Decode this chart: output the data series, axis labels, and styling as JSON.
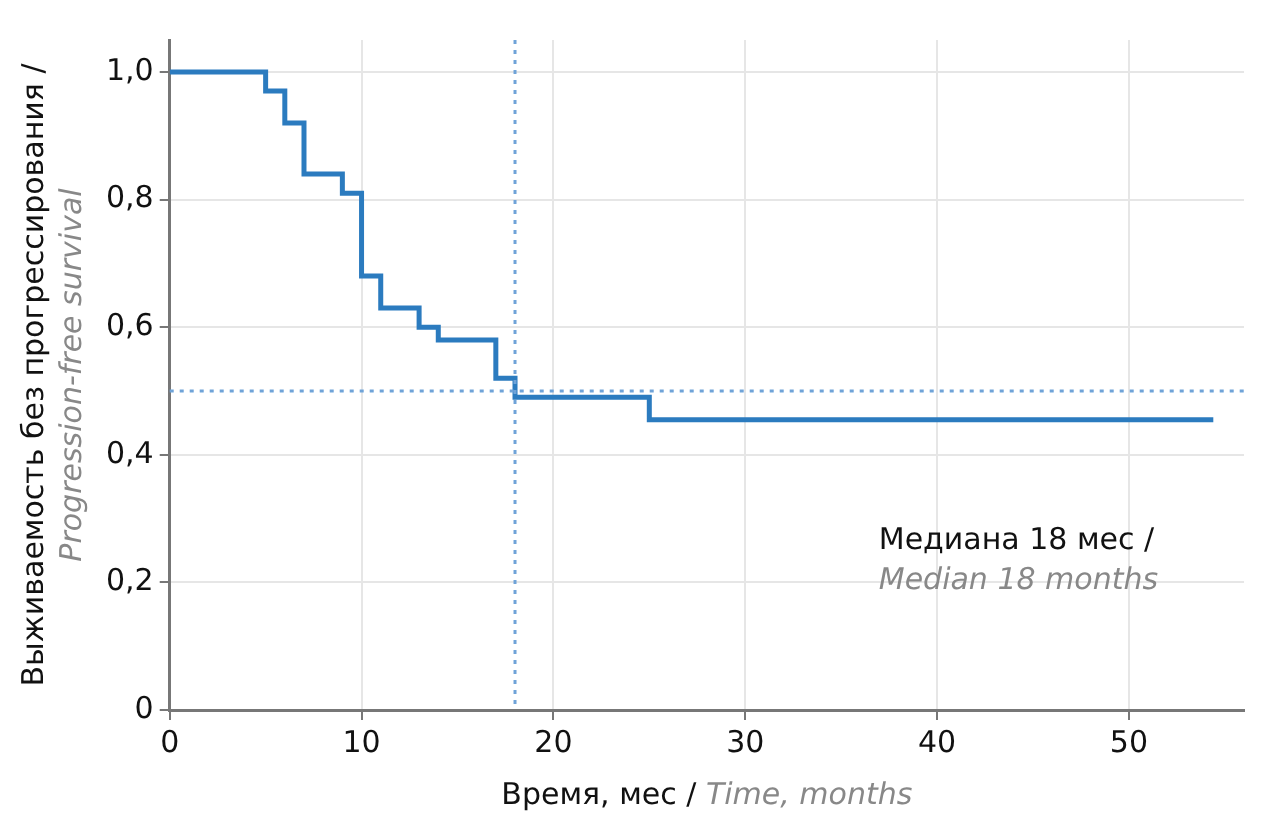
{
  "chart_data": {
    "type": "step",
    "xlabel": "Время, мес / Time, months",
    "ylabel": "Выживаемость без прогрессирования / Progression-free survival",
    "x": [
      0,
      5,
      6,
      7,
      9,
      10,
      11,
      13,
      14,
      17,
      18,
      25,
      54.4
    ],
    "series": [
      {
        "color": "#2b7bbf",
        "values": [
          1,
          0.97,
          0.92,
          0.84,
          0.81,
          0.68,
          0.63,
          0.6,
          0.58,
          0.52,
          0.49,
          0.455,
          0.455
        ]
      }
    ],
    "xlim": [
      0,
      56
    ],
    "xticks": [
      0,
      10,
      20,
      30,
      40,
      50
    ],
    "ylim": [
      0,
      1.05
    ],
    "yticks": [
      0,
      {
        "value": 0.2,
        "label": "0,2"
      },
      {
        "value": 0.4,
        "label": "0,4"
      },
      {
        "value": 0.6,
        "label": "0,6"
      },
      {
        "value": 0.8,
        "label": "0,8"
      },
      {
        "value": 1,
        "label": "1,0"
      }
    ],
    "ref_lines": [
      {
        "axis": "x",
        "value": 18,
        "color": "#6fa3d8",
        "line_style": "dotted"
      },
      {
        "axis": "y",
        "value": 0.5,
        "color": "#6fa3d8",
        "line_style": "dotted"
      }
    ],
    "annotations": [
      "Медиана 18 мес / Median 18 months"
    ],
    "grid": true,
    "legend": false,
    "marker": "none",
    "line_style": "solid"
  }
}
